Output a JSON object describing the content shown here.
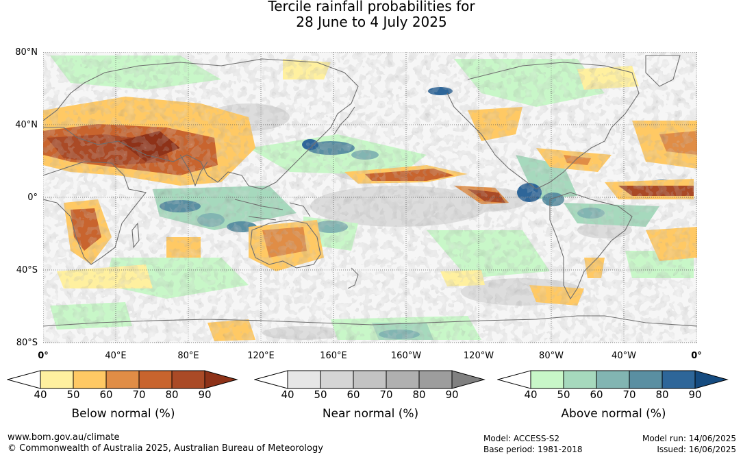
{
  "title": {
    "line1": "Tercile rainfall probabilities for",
    "line2": "28 June to 4 July 2025"
  },
  "axes": {
    "lat_labels": [
      "80°N",
      "40°N",
      "0°",
      "40°S",
      "80°S"
    ],
    "lon_labels": [
      "0°",
      "40°E",
      "80°E",
      "120°E",
      "160°E",
      "160°W",
      "120°W",
      "80°W",
      "40°W",
      "0°"
    ]
  },
  "colorbars": [
    {
      "title": "Below normal (%)",
      "ticks": [
        "40",
        "50",
        "60",
        "70",
        "80",
        "90"
      ],
      "colors": [
        "#ffffff",
        "#fff09f",
        "#ffc964",
        "#e08d46",
        "#c8642e",
        "#aa4a26",
        "#8e3218"
      ]
    },
    {
      "title": "Near normal (%)",
      "ticks": [
        "40",
        "50",
        "60",
        "70",
        "80",
        "90"
      ],
      "colors": [
        "#ffffff",
        "#e6e6e6",
        "#d5d5d5",
        "#c3c3c3",
        "#b0b0b0",
        "#9d9d9d",
        "#808080"
      ]
    },
    {
      "title": "Above normal (%)",
      "ticks": [
        "40",
        "50",
        "60",
        "70",
        "80",
        "90"
      ],
      "colors": [
        "#ffffff",
        "#c8f7c8",
        "#a6d9bd",
        "#82b5b2",
        "#5a8fa2",
        "#2e6699",
        "#154b80"
      ]
    }
  ],
  "footer": {
    "url": "www.bom.gov.au/climate",
    "copyright": "© Commonwealth of Australia 2025, Australian Bureau of Meteorology",
    "model": "Model: ACCESS-S2",
    "base_period": "Base period: 1981-2018",
    "model_run": "Model run: 14/06/2025",
    "issued": "Issued: 16/06/2025"
  },
  "map_colors": {
    "background": "#f4f4f4",
    "coast": "#6e6e6e",
    "grid": "#555555"
  }
}
